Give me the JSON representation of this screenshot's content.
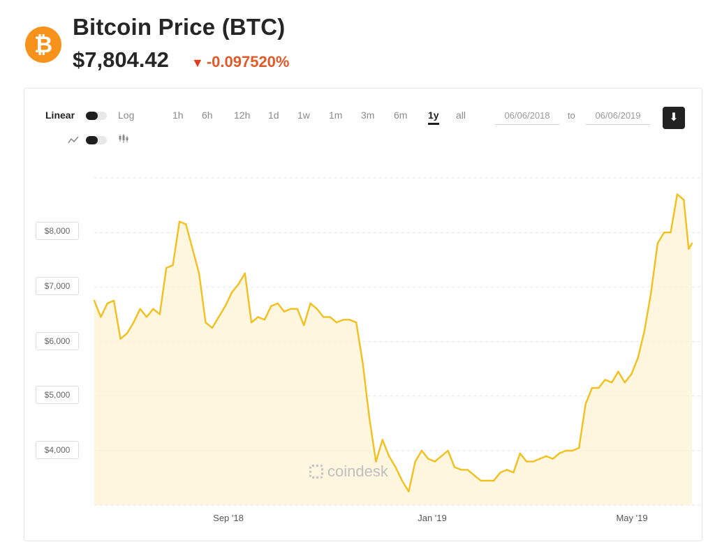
{
  "header": {
    "title": "Bitcoin Price (BTC)",
    "price": "$7,804.42",
    "change": "-0.097520%",
    "logo_icon": "bitcoin-icon"
  },
  "controls": {
    "scale_linear": "Linear",
    "scale_log": "Log",
    "ranges": [
      "1h",
      "6h",
      "12h",
      "1d",
      "1w",
      "1m",
      "3m",
      "6m",
      "1y",
      "all"
    ],
    "active_range": "1y",
    "date_from": "06/06/2018",
    "date_to": "06/06/2019",
    "to_label": "to",
    "chart_type_icons": [
      "line-chart-icon",
      "candlestick-icon"
    ],
    "download_icon": "download-icon"
  },
  "watermark": "coindesk",
  "colors": {
    "line": "#f2c01e",
    "fill": "#fdf3d3",
    "accent": "#f7931a",
    "negative": "#e0592a"
  },
  "chart_data": {
    "type": "area",
    "title": "",
    "xlabel": "",
    "ylabel": "",
    "x_ticks": [
      "Sep '18",
      "Jan '19",
      "May '19"
    ],
    "y_ticks": [
      "$4,000",
      "$5,000",
      "$6,000",
      "$7,000",
      "$8,000"
    ],
    "ylim": [
      3000,
      9000
    ],
    "grid": true,
    "series": [
      {
        "x": [
          "2018-06-06",
          "2018-06-10",
          "2018-06-14",
          "2018-06-18",
          "2018-06-22",
          "2018-06-26",
          "2018-06-30",
          "2018-07-04",
          "2018-07-08",
          "2018-07-12",
          "2018-07-16",
          "2018-07-20",
          "2018-07-24",
          "2018-07-28",
          "2018-08-01",
          "2018-08-05",
          "2018-08-09",
          "2018-08-13",
          "2018-08-17",
          "2018-08-21",
          "2018-08-25",
          "2018-08-29",
          "2018-09-02",
          "2018-09-06",
          "2018-09-10",
          "2018-09-14",
          "2018-09-18",
          "2018-09-22",
          "2018-09-26",
          "2018-09-30",
          "2018-10-04",
          "2018-10-08",
          "2018-10-12",
          "2018-10-16",
          "2018-10-20",
          "2018-10-24",
          "2018-10-28",
          "2018-11-01",
          "2018-11-05",
          "2018-11-09",
          "2018-11-13",
          "2018-11-17",
          "2018-11-21",
          "2018-11-25",
          "2018-11-29",
          "2018-12-03",
          "2018-12-07",
          "2018-12-11",
          "2018-12-15",
          "2018-12-19",
          "2018-12-23",
          "2018-12-27",
          "2018-12-31",
          "2019-01-04",
          "2019-01-08",
          "2019-01-12",
          "2019-01-16",
          "2019-01-20",
          "2019-01-24",
          "2019-01-28",
          "2019-02-01",
          "2019-02-05",
          "2019-02-09",
          "2019-02-13",
          "2019-02-17",
          "2019-02-21",
          "2019-02-25",
          "2019-03-01",
          "2019-03-05",
          "2019-03-09",
          "2019-03-13",
          "2019-03-17",
          "2019-03-21",
          "2019-03-25",
          "2019-03-29",
          "2019-04-02",
          "2019-04-06",
          "2019-04-10",
          "2019-04-14",
          "2019-04-18",
          "2019-04-22",
          "2019-04-26",
          "2019-04-30",
          "2019-05-04",
          "2019-05-08",
          "2019-05-12",
          "2019-05-16",
          "2019-05-20",
          "2019-05-24",
          "2019-05-28",
          "2019-06-01",
          "2019-06-04",
          "2019-06-06"
        ],
        "y": [
          6750,
          6450,
          6700,
          6750,
          6050,
          6150,
          6350,
          6600,
          6450,
          6600,
          6500,
          7350,
          7400,
          8200,
          8150,
          7700,
          7250,
          6350,
          6250,
          6450,
          6650,
          6900,
          7050,
          7250,
          6350,
          6450,
          6400,
          6650,
          6700,
          6550,
          6600,
          6600,
          6300,
          6700,
          6600,
          6450,
          6450,
          6350,
          6400,
          6400,
          6350,
          5600,
          4600,
          3800,
          4200,
          3900,
          3700,
          3450,
          3250,
          3800,
          4000,
          3850,
          3800,
          3900,
          4000,
          3700,
          3650,
          3650,
          3550,
          3450,
          3450,
          3450,
          3600,
          3650,
          3600,
          3950,
          3800,
          3800,
          3850,
          3900,
          3850,
          3950,
          4000,
          4000,
          4050,
          4850,
          5150,
          5150,
          5300,
          5250,
          5450,
          5250,
          5400,
          5700,
          6200,
          6900,
          7800,
          8000,
          8000,
          8700,
          8600,
          7700,
          7800
        ]
      }
    ]
  }
}
